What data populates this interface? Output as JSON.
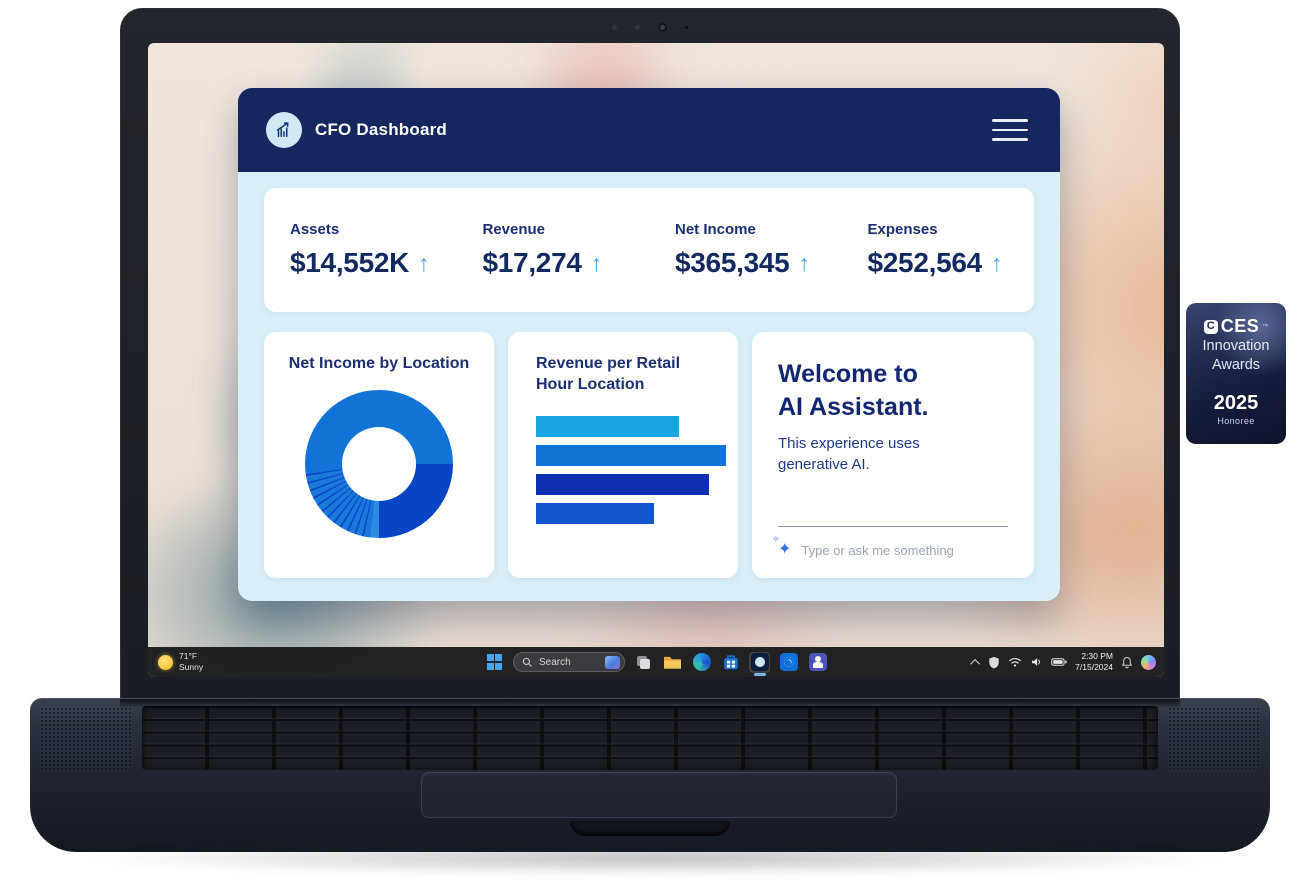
{
  "app": {
    "title": "CFO Dashboard",
    "logo_icon": "growth-chart-icon",
    "menu_icon": "hamburger-menu-icon",
    "trend_arrow": "↑",
    "metrics": [
      {
        "label": "Assets",
        "value": "$14,552K",
        "trend": "up"
      },
      {
        "label": "Revenue",
        "value": "$17,274",
        "trend": "up"
      },
      {
        "label": "Net Income",
        "value": "$365,345",
        "trend": "up"
      },
      {
        "label": "Expenses",
        "value": "$252,564",
        "trend": "up"
      }
    ],
    "assistant": {
      "heading_line1": "Welcome to",
      "heading_line2": "AI Assistant.",
      "body": "This experience uses generative AI.",
      "input_placeholder": "Type or ask me something",
      "sparkle_icon": "✦"
    },
    "colors": {
      "header_navy": "#16265e",
      "body_bg": "#d9f0f9",
      "text_navy": "#142b68",
      "trend_arrow_blue": "#4ba2da"
    }
  },
  "chart_data": [
    {
      "type": "pie",
      "variant": "donut",
      "title": "Net Income by Location",
      "legend": false,
      "segments": [
        {
          "label": "location-a",
          "start_deg": 0,
          "end_deg": 90,
          "share_pct": 25.0,
          "color": "#1273d6"
        },
        {
          "label": "location-b",
          "start_deg": 90,
          "end_deg": 180,
          "share_pct": 25.0,
          "color": "#0845c4"
        },
        {
          "label": "location-c",
          "start_deg": 180,
          "end_deg": 187,
          "share_pct": 1.9,
          "color": "#2e8ce2"
        },
        {
          "label": "small-locations",
          "start_deg": 187,
          "end_deg": 262,
          "share_pct": 20.8,
          "color": "#1a78da",
          "striped": true,
          "slices": 12,
          "gap_color": "#0845c4"
        },
        {
          "label": "location-d",
          "start_deg": 262,
          "end_deg": 360,
          "share_pct": 27.3,
          "color": "#1273d6"
        }
      ]
    },
    {
      "type": "bar",
      "orientation": "horizontal",
      "title": "Revenue per Retail Hour Location",
      "categories": [
        "",
        "",
        "",
        ""
      ],
      "values": [
        75,
        100,
        91,
        62
      ],
      "value_unit": "percent of longest bar (no axis labels shown)",
      "colors": [
        "#19a5e2",
        "#1173d5",
        "#0d2fb0",
        "#1356cc"
      ],
      "grid": false,
      "legend_position": "none"
    }
  ],
  "taskbar": {
    "weather": {
      "temperature": "71°F",
      "condition": "Sunny",
      "icon": "sun-icon"
    },
    "search": {
      "placeholder": "Search"
    },
    "app_icons": [
      "windows-start",
      "task-view",
      "file-explorer",
      "edge",
      "microsoft-store",
      "cfo-dashboard-app (active)",
      "outlook",
      "teams"
    ],
    "tray_icons": [
      "chevron-up",
      "shield",
      "wifi",
      "volume",
      "battery",
      "bell",
      "copilot"
    ],
    "clock": {
      "time": "2:30 PM",
      "date": "7/15/2024"
    }
  },
  "badge": {
    "logo_mark": "C",
    "brand": "CES",
    "trademark": "™",
    "line1": "Innovation",
    "line2": "Awards",
    "year": "2025",
    "subtitle": "Honoree"
  }
}
